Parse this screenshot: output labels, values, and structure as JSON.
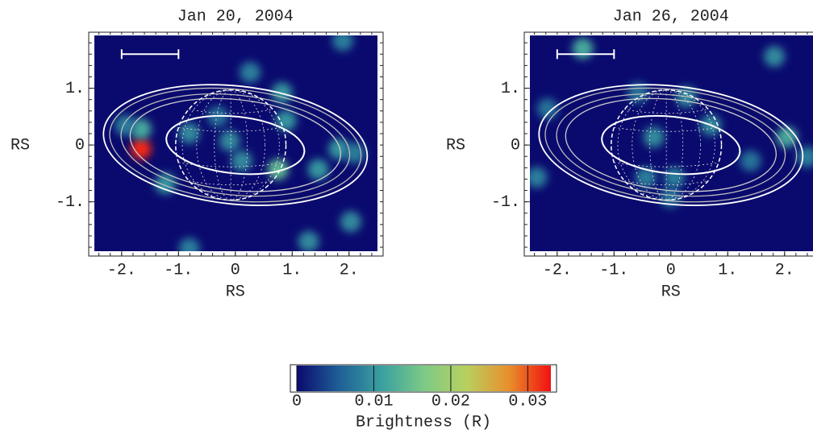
{
  "chart_data": [
    {
      "type": "heatmap",
      "title": "Jan 20, 2004",
      "xlabel": "RS",
      "ylabel": "RS",
      "xlim": [
        -2.48,
        2.5
      ],
      "ylim": [
        -1.87,
        1.93
      ],
      "xticks": [
        {
          "value": -2,
          "label": "-2."
        },
        {
          "value": -1,
          "label": "-1."
        },
        0,
        {
          "value": 1,
          "label": "1."
        },
        {
          "value": 2,
          "label": "2."
        }
      ],
      "yticks": [
        {
          "value": -1,
          "label": "-1."
        },
        0,
        {
          "value": 1,
          "label": "1."
        }
      ],
      "points": {
        "x": [
          -1.66,
          -1.66,
          -1.94,
          -1.23,
          0.26,
          1.89,
          0.82,
          0.89,
          0.75,
          1.46,
          1.82,
          2.1,
          -0.1,
          -0.81,
          0.11,
          2.03,
          1.29,
          -0.81,
          -0.31
        ],
        "y": [
          -0.07,
          0.28,
          0.35,
          -0.68,
          1.28,
          1.84,
          0.92,
          0.43,
          -0.43,
          -0.43,
          -0.07,
          -0.14,
          0.07,
          0.21,
          -0.28,
          -1.35,
          -1.7,
          -1.82,
          0.5
        ],
        "values": [
          0.032,
          0.012,
          0.008,
          0.01,
          0.008,
          0.008,
          0.01,
          0.01,
          0.014,
          0.01,
          0.01,
          0.008,
          0.009,
          0.009,
          0.009,
          0.009,
          0.009,
          0.008,
          0.007
        ]
      }
    },
    {
      "type": "heatmap",
      "title": "Jan 26, 2004",
      "xlabel": "RS",
      "ylabel": "RS",
      "xlim": [
        -2.48,
        2.5
      ],
      "ylim": [
        -1.87,
        1.93
      ],
      "xticks": [
        {
          "value": -2,
          "label": "-2."
        },
        {
          "value": -1,
          "label": "-1."
        },
        0,
        {
          "value": 1,
          "label": "1."
        },
        {
          "value": 2,
          "label": "2."
        }
      ],
      "yticks": [
        {
          "value": -1,
          "label": "-1."
        },
        0,
        {
          "value": 1,
          "label": "1."
        }
      ],
      "points": {
        "x": [
          -1.55,
          1.82,
          -2.17,
          -2.36,
          -0.3,
          0.27,
          0.7,
          2.04,
          2.4,
          -0.44,
          0.06,
          -0.58,
          -0.01,
          1.4
        ],
        "y": [
          1.7,
          1.56,
          0.64,
          -0.57,
          0.14,
          0.85,
          0.35,
          0.14,
          -0.21,
          -0.57,
          -0.57,
          0.92,
          -0.92,
          -0.28
        ],
        "values": [
          0.012,
          0.009,
          0.007,
          0.008,
          0.009,
          0.009,
          0.009,
          0.012,
          0.008,
          0.008,
          0.008,
          0.007,
          0.007,
          0.007
        ]
      }
    },
    {
      "type": "colorbar",
      "label": "Brightness (R)",
      "lim": [
        0,
        0.033
      ],
      "ticks": [
        0,
        0.01,
        0.02,
        0.03
      ],
      "colors": [
        "#0a0a6e",
        "#1f5f96",
        "#3aa0a0",
        "#7cca86",
        "#b8d060",
        "#e8902c",
        "#f21010"
      ]
    }
  ]
}
